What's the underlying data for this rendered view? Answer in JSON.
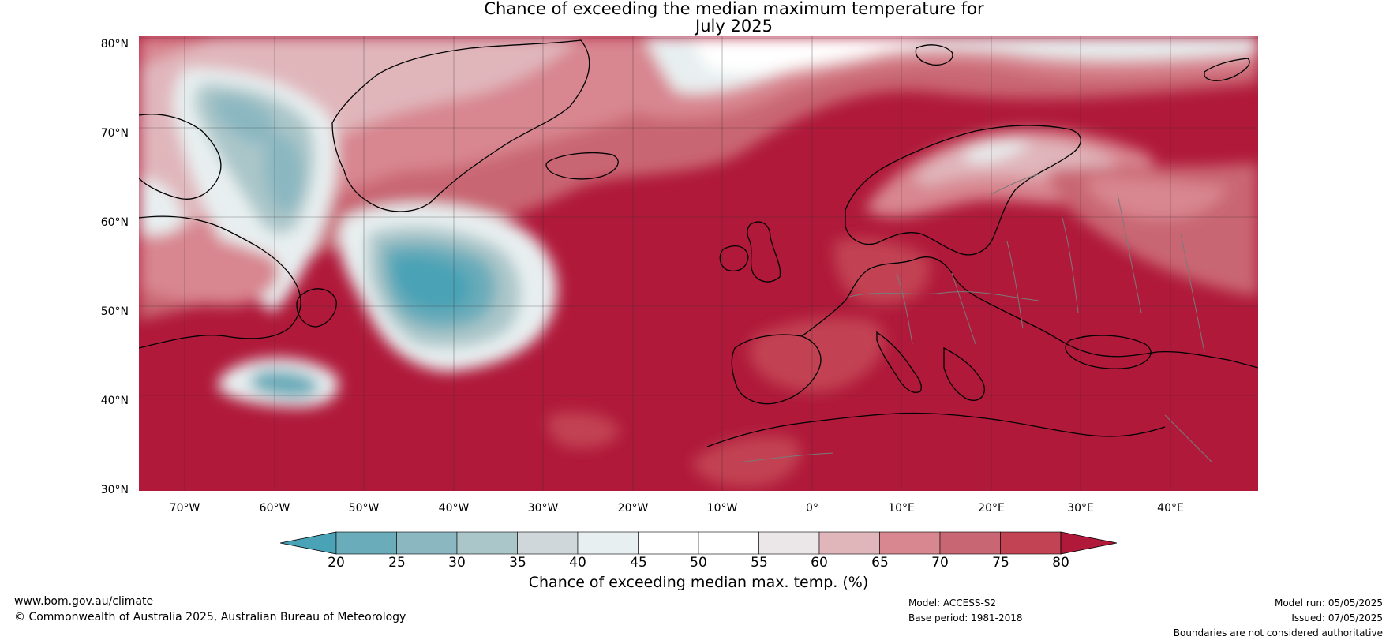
{
  "title": {
    "line1": "Chance of exceeding the median maximum temperature for",
    "line2": "July 2025"
  },
  "map": {
    "lat_labels": [
      "80°N",
      "70°N",
      "60°N",
      "50°N",
      "40°N",
      "30°N"
    ],
    "lon_labels": [
      "70°W",
      "60°W",
      "50°W",
      "40°W",
      "30°W",
      "20°W",
      "10°W",
      "0°",
      "10°E",
      "20°E",
      "30°E",
      "40°E"
    ],
    "lat_range": [
      30,
      81
    ],
    "lon_range": [
      -75,
      50
    ],
    "colors": {
      "land_outline": "#000000",
      "border": "#808080",
      "grid": "#333333"
    }
  },
  "colorbar": {
    "title": "Chance of exceeding median max. temp. (%)",
    "tick_labels": [
      "20",
      "25",
      "30",
      "35",
      "40",
      "45",
      "50",
      "55",
      "60",
      "65",
      "70",
      "75",
      "80"
    ],
    "colors": [
      "#49a2b5",
      "#6aacba",
      "#8bb7c1",
      "#aac6c9",
      "#cfd7da",
      "#e8eff0",
      "#ffffff",
      "#ffffff",
      "#ebe7e8",
      "#e0b6bb",
      "#d88690",
      "#c96673",
      "#c24353",
      "#b0193a"
    ]
  },
  "footer": {
    "url": "www.bom.gov.au/climate",
    "copyright": "© Commonwealth of Australia 2025, Australian Bureau of Meteorology",
    "model": "Model: ACCESS-S2",
    "base_period": "Base period: 1981-2018",
    "model_run": "Model run: 05/05/2025",
    "issued": "Issued: 07/05/2025",
    "disclaimer": "Boundaries are not considered authoritative"
  }
}
